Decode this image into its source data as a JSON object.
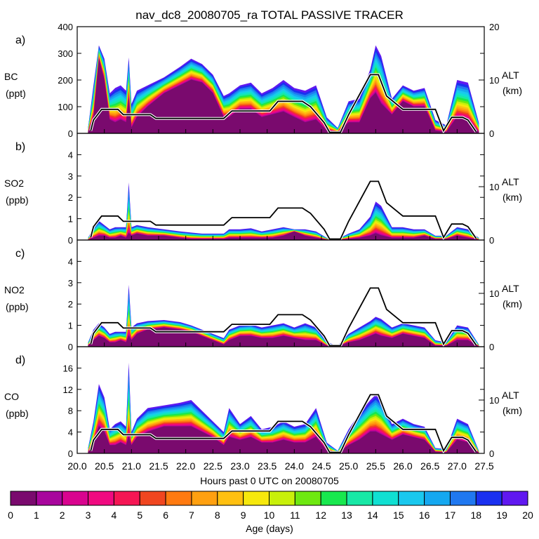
{
  "chart_data": {
    "type": "area",
    "title": "nav_dc8_20080705_ra TOTAL PASSIVE TRACER",
    "xlabel": "Hours past 0 UTC on 20080705",
    "x_range": [
      20.0,
      27.5
    ],
    "x_ticks": [
      "20.0",
      "20.5",
      "21.0",
      "21.5",
      "22.0",
      "22.5",
      "23.0",
      "23.5",
      "24.0",
      "24.5",
      "25.0",
      "25.5",
      "26.0",
      "26.5",
      "27.0",
      "27.5"
    ],
    "altitude_axis": {
      "label_line1": "ALT",
      "label_line2": "(km)",
      "range": [
        0,
        20
      ],
      "ticks": [
        "0",
        "10",
        "20"
      ],
      "tick_values": [
        0,
        10,
        20
      ]
    },
    "flight_altitude_km": {
      "x": [
        20.25,
        20.3,
        20.45,
        20.75,
        20.85,
        21.35,
        21.45,
        21.95,
        22.7,
        22.85,
        23.55,
        23.7,
        24.15,
        24.3,
        24.55,
        24.65,
        24.85,
        25.0,
        25.4,
        25.55,
        25.7,
        26.0,
        26.6,
        26.75,
        26.9,
        27.1,
        27.2,
        27.35
      ],
      "y": [
        0.5,
        2.5,
        4.5,
        4.5,
        3.5,
        3.5,
        2.8,
        2.8,
        2.8,
        4.2,
        4.2,
        6.0,
        6.0,
        5.0,
        2.0,
        0.2,
        0.2,
        3.5,
        11.0,
        11.0,
        7.0,
        4.5,
        4.5,
        0.5,
        3.0,
        3.0,
        2.5,
        0.3
      ]
    },
    "colorbar": {
      "label": "Age (days)",
      "ticks": [
        "0",
        "1",
        "2",
        "3",
        "4",
        "5",
        "6",
        "7",
        "8",
        "9",
        "10",
        "11",
        "12",
        "13",
        "14",
        "15",
        "16",
        "17",
        "18",
        "19",
        "20"
      ],
      "colors": [
        "#7a0a6e",
        "#a8069d",
        "#d9048f",
        "#f00a80",
        "#f51654",
        "#f04620",
        "#ff7a10",
        "#ffa010",
        "#ffc010",
        "#f6e80c",
        "#c8f00a",
        "#6ee810",
        "#18e84e",
        "#18e8a6",
        "#10e0d2",
        "#1ac8ee",
        "#15a8f0",
        "#2078f0",
        "#1a30f0",
        "#6018f0"
      ]
    },
    "panels": [
      {
        "tag": "a)",
        "species": "BC",
        "units": "(ppt)",
        "y_range": [
          0,
          400
        ],
        "y_ticks": [
          "0",
          "100",
          "200",
          "300",
          "400"
        ],
        "y_tick_values": [
          0,
          100,
          200,
          300,
          400
        ],
        "x": [
          20.2,
          20.3,
          20.4,
          20.5,
          20.6,
          20.7,
          20.8,
          20.9,
          20.95,
          21.0,
          21.1,
          21.3,
          21.6,
          21.9,
          22.1,
          22.3,
          22.5,
          22.7,
          22.8,
          23.0,
          23.2,
          23.4,
          23.6,
          23.8,
          24.0,
          24.2,
          24.4,
          24.6,
          24.8,
          25.0,
          25.2,
          25.4,
          25.5,
          25.6,
          25.8,
          26.0,
          26.2,
          26.4,
          26.6,
          26.8,
          27.0,
          27.2,
          27.4
        ],
        "total": [
          20,
          180,
          330,
          280,
          150,
          170,
          180,
          160,
          285,
          110,
          160,
          180,
          210,
          250,
          280,
          260,
          220,
          140,
          150,
          180,
          190,
          150,
          170,
          200,
          170,
          160,
          180,
          60,
          20,
          120,
          130,
          240,
          330,
          290,
          130,
          180,
          160,
          170,
          50,
          30,
          200,
          190,
          40
        ],
        "young": [
          5,
          60,
          280,
          200,
          50,
          40,
          50,
          40,
          130,
          20,
          60,
          100,
          150,
          180,
          200,
          190,
          150,
          60,
          60,
          90,
          90,
          60,
          70,
          80,
          60,
          40,
          50,
          10,
          5,
          40,
          40,
          130,
          150,
          110,
          70,
          120,
          100,
          100,
          10,
          5,
          60,
          50,
          5
        ]
      },
      {
        "tag": "b)",
        "species": "SO2",
        "units": "(ppb)",
        "y_range": [
          0,
          5
        ],
        "y_ticks": [
          "0",
          "1",
          "2",
          "3",
          "4"
        ],
        "y_tick_values": [
          0,
          1,
          2,
          3,
          4
        ],
        "x": [
          20.2,
          20.3,
          20.4,
          20.5,
          20.6,
          20.7,
          20.8,
          20.9,
          20.95,
          21.0,
          21.1,
          21.3,
          21.6,
          21.9,
          22.1,
          22.3,
          22.5,
          22.7,
          22.8,
          23.0,
          23.2,
          23.4,
          23.6,
          23.8,
          24.0,
          24.2,
          24.4,
          24.6,
          24.8,
          25.0,
          25.2,
          25.4,
          25.5,
          25.6,
          25.8,
          26.0,
          26.2,
          26.4,
          26.6,
          26.8,
          27.0,
          27.2,
          27.4
        ],
        "total": [
          0.1,
          0.6,
          0.9,
          0.7,
          0.5,
          0.6,
          0.6,
          0.6,
          2.7,
          0.6,
          0.7,
          0.6,
          0.5,
          0.4,
          0.35,
          0.3,
          0.3,
          0.3,
          0.5,
          0.5,
          0.55,
          0.4,
          0.5,
          0.6,
          0.5,
          0.5,
          0.4,
          0.1,
          0.05,
          0.3,
          0.5,
          1.1,
          1.8,
          1.6,
          0.6,
          0.6,
          0.5,
          0.5,
          0.2,
          0.2,
          0.6,
          0.5,
          0.1
        ],
        "young": [
          0.02,
          0.1,
          0.2,
          0.2,
          0.1,
          0.1,
          0.2,
          0.1,
          0.3,
          0.2,
          0.3,
          0.2,
          0.2,
          0.1,
          0.05,
          0.05,
          0.05,
          0.05,
          0.1,
          0.1,
          0.1,
          0.1,
          0.1,
          0.2,
          0.4,
          0.2,
          0.1,
          0.02,
          0.01,
          0.05,
          0.1,
          0.2,
          0.3,
          0.2,
          0.1,
          0.1,
          0.1,
          0.2,
          0.05,
          0.05,
          0.2,
          0.1,
          0.02
        ]
      },
      {
        "tag": "c)",
        "species": "NO2",
        "units": "(ppb)",
        "y_range": [
          0,
          5
        ],
        "y_ticks": [
          "0",
          "1",
          "2",
          "3",
          "4"
        ],
        "y_tick_values": [
          0,
          1,
          2,
          3,
          4
        ],
        "x": [
          20.2,
          20.3,
          20.4,
          20.5,
          20.6,
          20.7,
          20.8,
          20.9,
          20.95,
          21.0,
          21.1,
          21.3,
          21.6,
          21.9,
          22.1,
          22.3,
          22.5,
          22.7,
          22.8,
          23.0,
          23.2,
          23.4,
          23.6,
          23.8,
          24.0,
          24.2,
          24.4,
          24.6,
          24.8,
          25.0,
          25.2,
          25.4,
          25.5,
          25.6,
          25.8,
          26.0,
          26.2,
          26.4,
          26.6,
          26.8,
          27.0,
          27.2,
          27.4
        ],
        "total": [
          0.2,
          0.8,
          1.1,
          0.9,
          0.6,
          0.7,
          0.7,
          0.7,
          2.9,
          0.9,
          1.1,
          1.2,
          1.25,
          1.15,
          1.0,
          0.8,
          0.6,
          0.4,
          0.8,
          1.0,
          1.05,
          0.9,
          1.0,
          1.1,
          0.9,
          1.1,
          0.9,
          0.2,
          0.05,
          0.6,
          0.9,
          1.2,
          1.4,
          1.3,
          0.9,
          1.1,
          1.0,
          0.9,
          0.3,
          0.2,
          1.0,
          0.9,
          0.1
        ],
        "young": [
          0.05,
          0.3,
          0.5,
          0.4,
          0.2,
          0.2,
          0.3,
          0.2,
          0.5,
          0.3,
          0.6,
          0.8,
          0.9,
          0.8,
          0.7,
          0.5,
          0.3,
          0.1,
          0.3,
          0.5,
          0.5,
          0.4,
          0.4,
          0.5,
          0.4,
          0.3,
          0.3,
          0.05,
          0.02,
          0.2,
          0.3,
          0.5,
          0.6,
          0.5,
          0.4,
          0.6,
          0.5,
          0.4,
          0.05,
          0.05,
          0.3,
          0.3,
          0.02
        ]
      },
      {
        "tag": "d)",
        "species": "CO",
        "units": "(ppb)",
        "y_range": [
          0,
          20
        ],
        "y_ticks": [
          "0",
          "4",
          "8",
          "12",
          "16"
        ],
        "y_tick_values": [
          0,
          4,
          8,
          12,
          16
        ],
        "x": [
          20.2,
          20.3,
          20.4,
          20.5,
          20.6,
          20.7,
          20.8,
          20.9,
          20.95,
          21.0,
          21.1,
          21.3,
          21.6,
          21.9,
          22.1,
          22.3,
          22.5,
          22.7,
          22.8,
          23.0,
          23.2,
          23.4,
          23.6,
          23.8,
          24.0,
          24.2,
          24.4,
          24.6,
          24.8,
          25.0,
          25.2,
          25.4,
          25.5,
          25.6,
          25.8,
          26.0,
          26.2,
          26.4,
          26.6,
          26.8,
          27.0,
          27.2,
          27.4
        ],
        "total": [
          1.0,
          6.0,
          13.0,
          10.5,
          4.5,
          5.5,
          6.0,
          5.0,
          17.0,
          4.0,
          6.5,
          8.5,
          9.0,
          9.5,
          10.0,
          8.0,
          6.0,
          4.0,
          8.5,
          5.5,
          7.0,
          4.5,
          5.0,
          6.0,
          5.0,
          5.5,
          8.5,
          2.0,
          0.5,
          4.5,
          7.5,
          10.0,
          11.0,
          10.0,
          5.5,
          6.5,
          5.5,
          5.0,
          1.0,
          0.8,
          6.5,
          5.5,
          0.5
        ],
        "young": [
          0.2,
          2.0,
          5.0,
          4.0,
          1.5,
          1.5,
          2.0,
          1.5,
          3.0,
          1.5,
          3.0,
          4.0,
          5.0,
          5.0,
          5.0,
          4.0,
          3.0,
          1.5,
          3.0,
          2.5,
          3.0,
          2.0,
          2.0,
          2.5,
          2.0,
          2.0,
          3.0,
          0.5,
          0.1,
          1.5,
          2.5,
          4.0,
          4.0,
          3.5,
          2.5,
          3.5,
          3.0,
          2.5,
          0.3,
          0.2,
          2.5,
          2.0,
          0.1
        ]
      }
    ]
  }
}
